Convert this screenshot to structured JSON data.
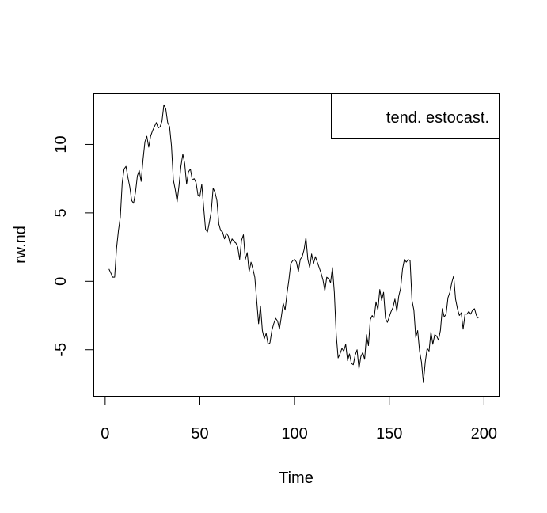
{
  "chart_data": {
    "type": "line",
    "title": "",
    "xlabel": "Time",
    "ylabel": "rw.nd",
    "xlim": [
      -6,
      208
    ],
    "ylim": [
      -8.4,
      13.7
    ],
    "x_ticks": [
      0,
      50,
      100,
      150,
      200
    ],
    "y_ticks": [
      -5,
      0,
      5,
      10
    ],
    "x_tick_labels": [
      "0",
      "50",
      "100",
      "150",
      "200"
    ],
    "y_tick_labels": [
      "-5",
      "0",
      "5",
      "10"
    ],
    "grid": false,
    "legend": {
      "position": "top-right",
      "entries": [
        "tend. estocast."
      ]
    },
    "series": [
      {
        "color": "#000000",
        "x_start": 2,
        "x_step": 1,
        "values": [
          0.9,
          0.6,
          0.3,
          0.3,
          2.4,
          3.7,
          4.7,
          7.2,
          8.2,
          8.4,
          7.6,
          6.9,
          5.9,
          5.7,
          6.5,
          7.7,
          8.1,
          7.3,
          8.9,
          10.2,
          10.6,
          9.8,
          10.6,
          11.0,
          11.3,
          11.6,
          11.2,
          11.3,
          11.7,
          12.9,
          12.6,
          11.6,
          11.3,
          9.9,
          7.4,
          6.7,
          5.8,
          7.0,
          8.4,
          9.3,
          8.6,
          7.1,
          8.0,
          8.2,
          7.4,
          7.5,
          7.2,
          6.3,
          6.2,
          7.1,
          5.4,
          3.8,
          3.6,
          4.3,
          5.1,
          6.8,
          6.5,
          5.9,
          4.2,
          3.7,
          3.6,
          3.1,
          3.5,
          3.3,
          2.7,
          3.1,
          2.9,
          2.8,
          2.5,
          1.6,
          3.0,
          3.4,
          1.6,
          2.1,
          0.7,
          1.4,
          0.9,
          0.3,
          -1.4,
          -3.1,
          -1.8,
          -3.6,
          -4.2,
          -3.8,
          -4.6,
          -4.5,
          -3.6,
          -3.1,
          -2.7,
          -2.9,
          -3.5,
          -2.6,
          -1.6,
          -2.1,
          -0.9,
          0.1,
          1.3,
          1.5,
          1.6,
          1.4,
          0.7,
          1.6,
          1.8,
          2.3,
          3.2,
          1.6,
          1.0,
          2.0,
          1.3,
          1.8,
          1.4,
          1.0,
          0.6,
          0.1,
          -0.7,
          0.3,
          0.2,
          -0.1,
          1.0,
          -0.8,
          -3.9,
          -5.6,
          -5.3,
          -4.9,
          -5.1,
          -4.6,
          -5.8,
          -5.3,
          -6.0,
          -6.1,
          -5.4,
          -5.0,
          -6.4,
          -5.5,
          -5.2,
          -5.7,
          -3.9,
          -4.7,
          -2.8,
          -2.5,
          -2.7,
          -1.5,
          -2.1,
          -0.6,
          -1.4,
          -0.8,
          -2.7,
          -3.0,
          -2.6,
          -2.2,
          -1.9,
          -1.3,
          -2.2,
          -1.1,
          -0.5,
          0.9,
          1.6,
          1.4,
          1.6,
          1.5,
          -1.4,
          -2.1,
          -4.1,
          -3.6,
          -5.1,
          -5.9,
          -7.4,
          -5.9,
          -4.9,
          -5.1,
          -3.7,
          -4.6,
          -3.9,
          -4.0,
          -4.3,
          -3.6,
          -2.0,
          -2.6,
          -2.4,
          -1.2,
          -0.8,
          -0.1,
          0.4,
          -1.3,
          -2.0,
          -2.5,
          -2.3,
          -3.5,
          -2.4,
          -2.4,
          -2.2,
          -2.4,
          -2.1,
          -2.0,
          -2.5,
          -2.7
        ]
      }
    ]
  }
}
